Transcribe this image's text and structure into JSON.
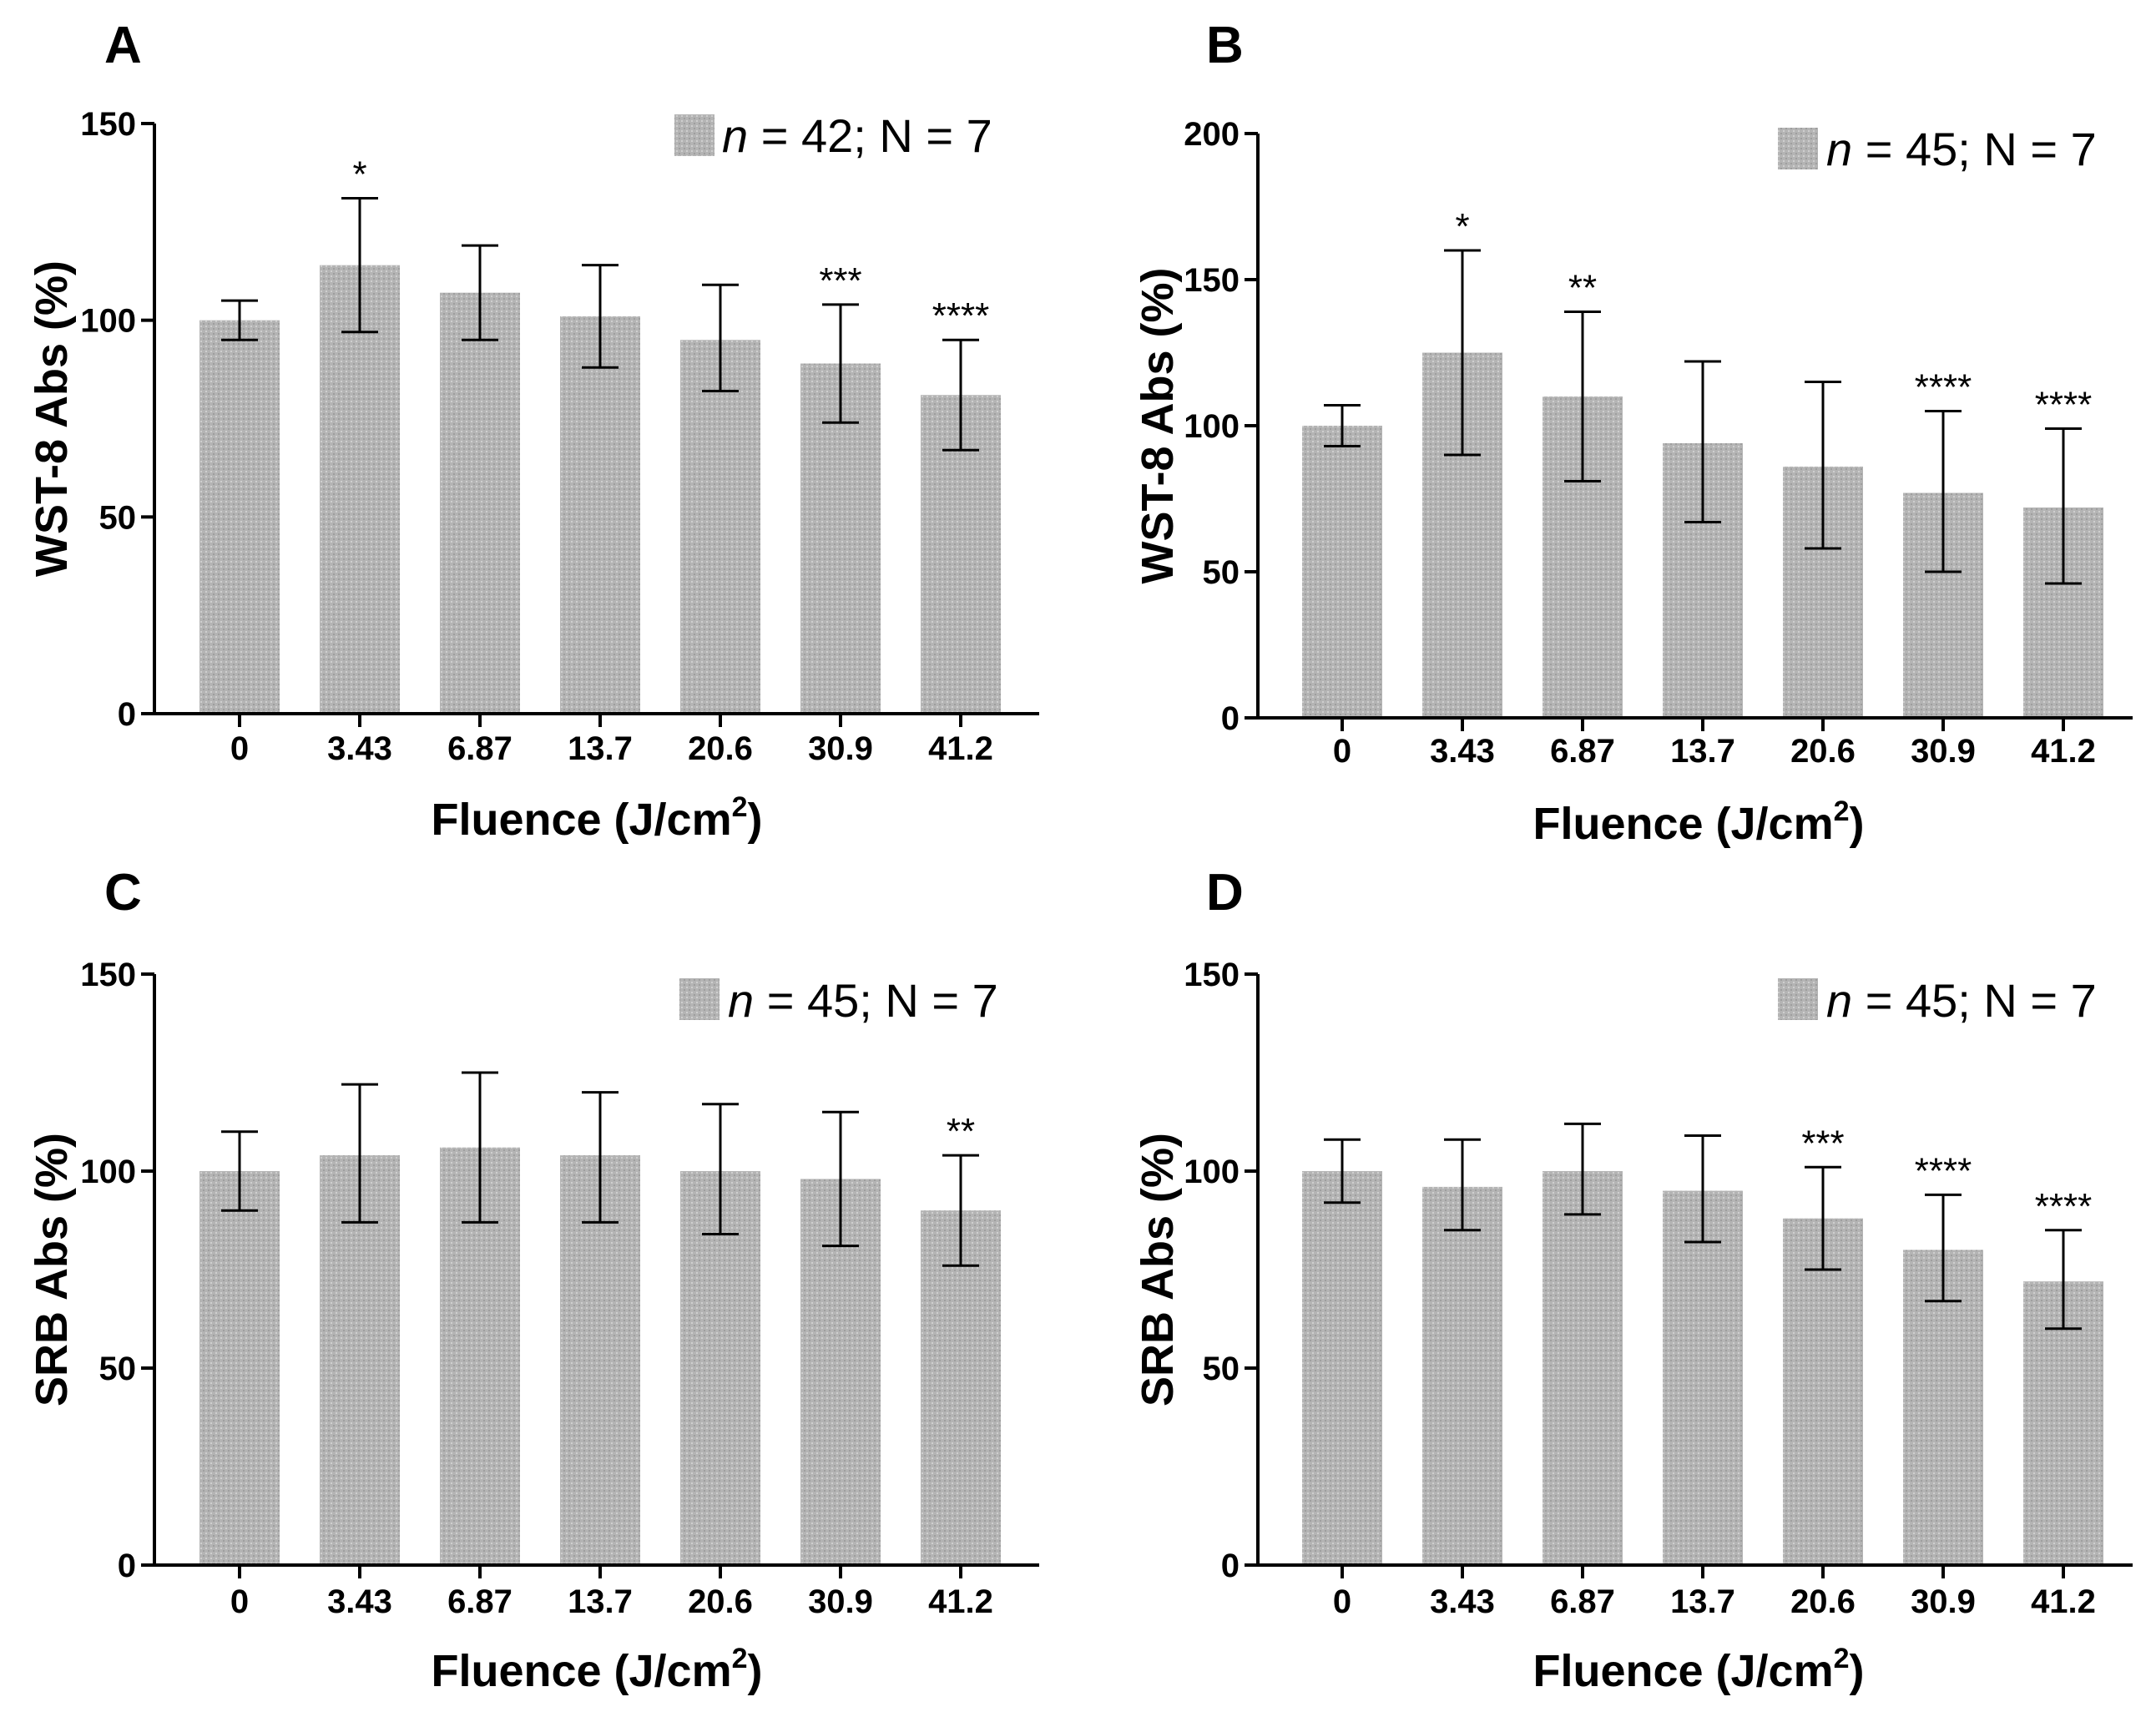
{
  "chart_data": [
    {
      "type": "bar",
      "panel": "A",
      "categories": [
        "0",
        "3.43",
        "6.87",
        "13.7",
        "20.6",
        "30.9",
        "41.2"
      ],
      "values": [
        100,
        114,
        107,
        101,
        95,
        89,
        81
      ],
      "error_low": [
        95,
        97,
        95,
        88,
        82,
        74,
        67
      ],
      "error_high": [
        105,
        131,
        119,
        114,
        109,
        104,
        95
      ],
      "significance": [
        "",
        "*",
        "",
        "",
        "",
        "***",
        "****"
      ],
      "ylabel": "WST-8 Abs (%)",
      "xlabel": "Fluence (J/cm",
      "xlabel_sup": "2",
      "xlabel_end": ")",
      "ylim": [
        0,
        150
      ],
      "yticks": [
        0,
        50,
        100,
        150
      ],
      "legend": {
        "italic": "n",
        "rest": " = 42; N = 7"
      },
      "bar_color": "#b8b8b8"
    },
    {
      "type": "bar",
      "panel": "B",
      "categories": [
        "0",
        "3.43",
        "6.87",
        "13.7",
        "20.6",
        "30.9",
        "41.2"
      ],
      "values": [
        100,
        125,
        110,
        94,
        86,
        77,
        72
      ],
      "error_low": [
        93,
        90,
        81,
        67,
        58,
        50,
        46
      ],
      "error_high": [
        107,
        160,
        139,
        122,
        115,
        105,
        99
      ],
      "significance": [
        "",
        "*",
        "**",
        "",
        "",
        "****",
        "****"
      ],
      "ylabel": "WST-8 Abs (%)",
      "xlabel": "Fluence (J/cm",
      "xlabel_sup": "2",
      "xlabel_end": ")",
      "ylim": [
        0,
        200
      ],
      "yticks": [
        0,
        50,
        100,
        150,
        200
      ],
      "legend": {
        "italic": "n",
        "rest": " = 45; N = 7"
      },
      "bar_color": "#b8b8b8"
    },
    {
      "type": "bar",
      "panel": "C",
      "categories": [
        "0",
        "3.43",
        "6.87",
        "13.7",
        "20.6",
        "30.9",
        "41.2"
      ],
      "values": [
        100,
        104,
        106,
        104,
        100,
        98,
        90
      ],
      "error_low": [
        90,
        87,
        87,
        87,
        84,
        81,
        76
      ],
      "error_high": [
        110,
        122,
        125,
        120,
        117,
        115,
        104
      ],
      "significance": [
        "",
        "",
        "",
        "",
        "",
        "",
        "**"
      ],
      "ylabel": "SRB Abs (%)",
      "xlabel": "Fluence (J/cm",
      "xlabel_sup": "2",
      "xlabel_end": ")",
      "ylim": [
        0,
        150
      ],
      "yticks": [
        0,
        50,
        100,
        150
      ],
      "legend": {
        "italic": "n",
        "rest": " = 45; N = 7"
      },
      "bar_color": "#b8b8b8"
    },
    {
      "type": "bar",
      "panel": "D",
      "categories": [
        "0",
        "3.43",
        "6.87",
        "13.7",
        "20.6",
        "30.9",
        "41.2"
      ],
      "values": [
        100,
        96,
        100,
        95,
        88,
        80,
        72
      ],
      "error_low": [
        92,
        85,
        89,
        82,
        75,
        67,
        60
      ],
      "error_high": [
        108,
        108,
        112,
        109,
        101,
        94,
        85
      ],
      "significance": [
        "",
        "",
        "",
        "",
        "***",
        "****",
        "****"
      ],
      "ylabel": "SRB Abs (%)",
      "xlabel": "Fluence (J/cm",
      "xlabel_sup": "2",
      "xlabel_end": ")",
      "ylim": [
        0,
        150
      ],
      "yticks": [
        0,
        50,
        100,
        150
      ],
      "legend": {
        "italic": "n",
        "rest": " = 45; N = 7"
      },
      "bar_color": "#b8b8b8"
    }
  ]
}
